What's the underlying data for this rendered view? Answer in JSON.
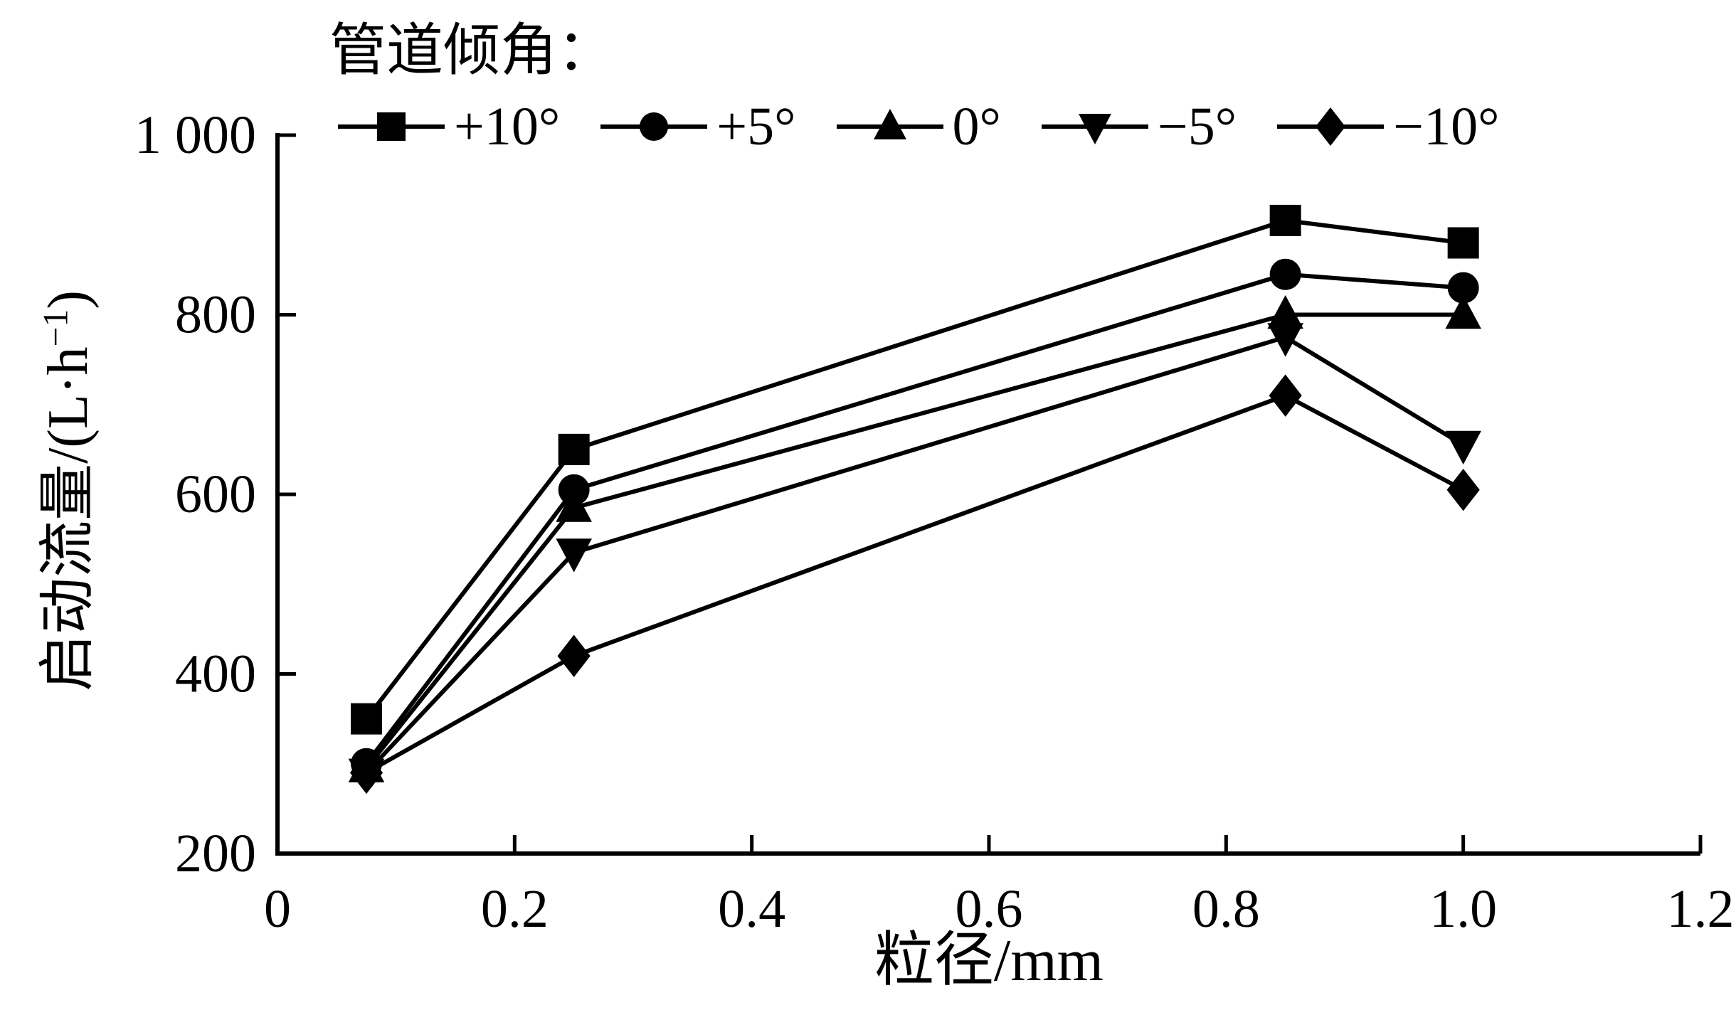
{
  "chart_data": {
    "type": "line",
    "legend_title": "管道倾角：",
    "legend_position": "top",
    "grid": false,
    "x": [
      0.075,
      0.25,
      0.85,
      1.0
    ],
    "series": [
      {
        "name": "+10°",
        "marker": "square",
        "values": [
          350,
          650,
          905,
          880
        ]
      },
      {
        "name": "+5°",
        "marker": "circle",
        "values": [
          300,
          605,
          845,
          830
        ]
      },
      {
        "name": "0°",
        "marker": "triangle-up",
        "values": [
          295,
          585,
          800,
          800
        ]
      },
      {
        "name": "−5°",
        "marker": "triangle-down",
        "values": [
          290,
          535,
          775,
          655
        ]
      },
      {
        "name": "−10°",
        "marker": "diamond",
        "values": [
          290,
          420,
          710,
          605
        ]
      }
    ],
    "xlabel": "粒径/mm",
    "ylabel": "启动流量/(L·h⁻¹)",
    "ylabel_parts": {
      "base": "启动流量/(L·h",
      "sup": "−1",
      "close": ")"
    },
    "xlim": [
      0,
      1.2
    ],
    "ylim": [
      200,
      1000
    ],
    "xticks": [
      {
        "v": 0,
        "label": "0"
      },
      {
        "v": 0.2,
        "label": "0.2"
      },
      {
        "v": 0.4,
        "label": "0.4"
      },
      {
        "v": 0.6,
        "label": "0.6"
      },
      {
        "v": 0.8,
        "label": "0.8"
      },
      {
        "v": 1.0,
        "label": "1.0"
      },
      {
        "v": 1.2,
        "label": "1.2"
      }
    ],
    "yticks": [
      {
        "v": 200,
        "label": "200"
      },
      {
        "v": 400,
        "label": "400"
      },
      {
        "v": 600,
        "label": "600"
      },
      {
        "v": 800,
        "label": "800"
      },
      {
        "v": 1000,
        "label": "1 000"
      }
    ],
    "line_color": "#000000",
    "background": "#ffffff"
  }
}
